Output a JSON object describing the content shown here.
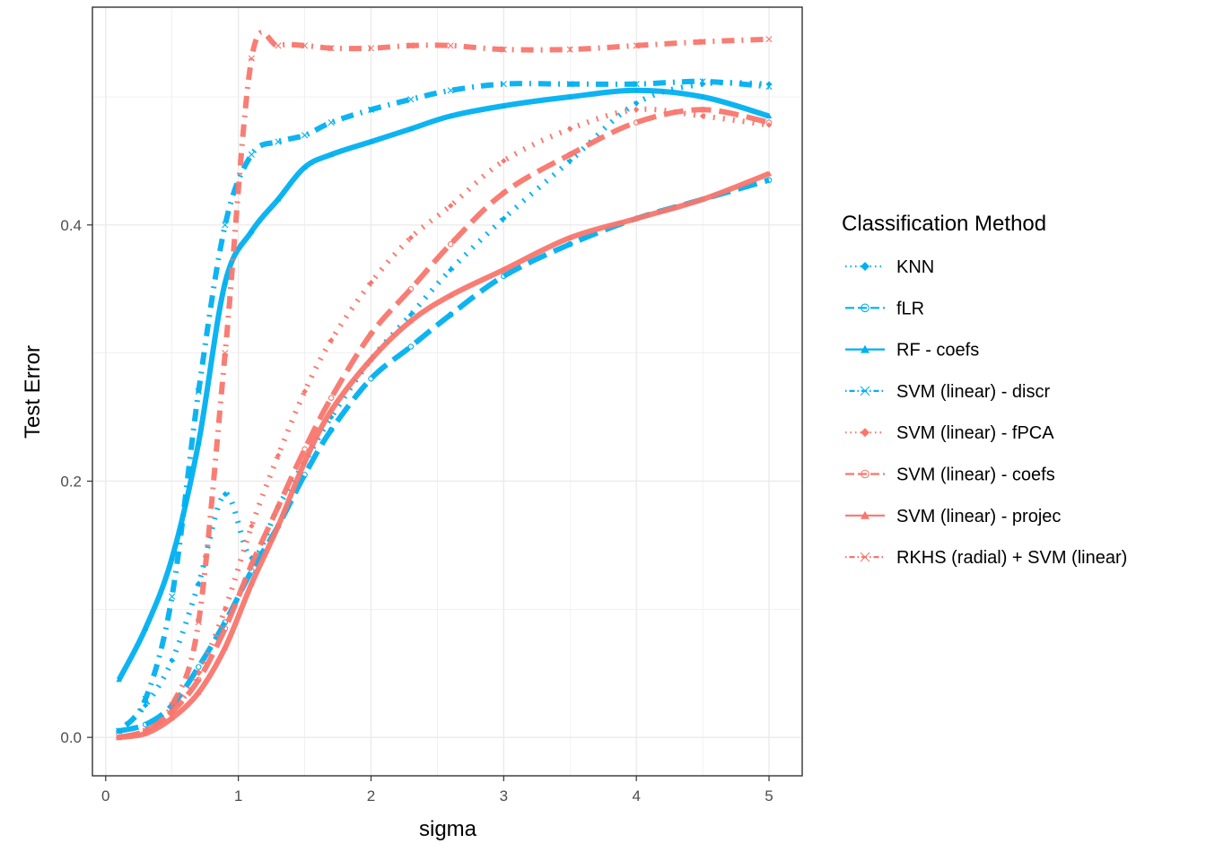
{
  "chart_data": {
    "type": "line",
    "xlabel": "sigma",
    "ylabel": "Test Error",
    "xlim": [
      -0.1,
      5.25
    ],
    "ylim": [
      -0.03,
      0.57
    ],
    "x_ticks": [
      0,
      1,
      2,
      3,
      4,
      5
    ],
    "x_tick_labels": [
      "0",
      "1",
      "2",
      "3",
      "4",
      "5"
    ],
    "y_ticks": [
      0.0,
      0.2,
      0.4
    ],
    "y_tick_labels": [
      "0.0",
      "0.2",
      "0.4"
    ],
    "grid": true,
    "legend": {
      "title": "Classification Method",
      "position": "right"
    },
    "colors": {
      "blue": "#00B0F0",
      "red": "#F8766D",
      "panel_border": "#333333",
      "grid": "#ebebeb"
    },
    "x": [
      0.1,
      0.3,
      0.5,
      0.7,
      0.9,
      1.1,
      1.3,
      1.5,
      1.7,
      2.0,
      2.3,
      2.6,
      3.0,
      3.5,
      4.0,
      4.5,
      5.0
    ],
    "series": [
      {
        "name": "KNN",
        "color": "#00B0F0",
        "dash": "dot",
        "marker": "diamond",
        "values": [
          0.005,
          0.025,
          0.06,
          0.12,
          0.19,
          0.14,
          0.18,
          0.215,
          0.25,
          0.295,
          0.33,
          0.365,
          0.405,
          0.45,
          0.495,
          0.51,
          0.51
        ]
      },
      {
        "name": "fLR",
        "color": "#00B0F0",
        "dash": "longdash",
        "marker": "circle-open",
        "values": [
          0.005,
          0.01,
          0.025,
          0.055,
          0.09,
          0.13,
          0.165,
          0.205,
          0.24,
          0.28,
          0.305,
          0.33,
          0.36,
          0.385,
          0.405,
          0.42,
          0.435
        ]
      },
      {
        "name": "RF - coefs",
        "color": "#00B0F0",
        "dash": "solid",
        "marker": "triangle",
        "values": [
          0.045,
          0.085,
          0.14,
          0.23,
          0.355,
          0.395,
          0.42,
          0.445,
          0.455,
          0.465,
          0.475,
          0.485,
          0.493,
          0.5,
          0.505,
          0.5,
          0.485
        ]
      },
      {
        "name": "SVM (linear) - discr",
        "color": "#00B0F0",
        "dash": "dotdash",
        "marker": "x",
        "values": [
          0.005,
          0.03,
          0.11,
          0.27,
          0.4,
          0.455,
          0.465,
          0.47,
          0.48,
          0.49,
          0.498,
          0.505,
          0.51,
          0.51,
          0.51,
          0.512,
          0.508
        ]
      },
      {
        "name": "SVM (linear) - fPCA",
        "color": "#F8766D",
        "dash": "dot",
        "marker": "diamond",
        "values": [
          0.0,
          0.005,
          0.02,
          0.05,
          0.1,
          0.165,
          0.22,
          0.27,
          0.31,
          0.355,
          0.39,
          0.415,
          0.45,
          0.475,
          0.49,
          0.485,
          0.478
        ]
      },
      {
        "name": "SVM (linear) - coefs",
        "color": "#F8766D",
        "dash": "longdash",
        "marker": "circle-open",
        "values": [
          0.0,
          0.005,
          0.02,
          0.045,
          0.085,
          0.135,
          0.18,
          0.225,
          0.265,
          0.315,
          0.35,
          0.385,
          0.425,
          0.455,
          0.48,
          0.49,
          0.48
        ]
      },
      {
        "name": "SVM (linear) - projec",
        "color": "#F8766D",
        "dash": "solid",
        "marker": "triangle",
        "values": [
          0.0,
          0.003,
          0.015,
          0.035,
          0.07,
          0.12,
          0.165,
          0.215,
          0.255,
          0.295,
          0.325,
          0.345,
          0.365,
          0.39,
          0.405,
          0.42,
          0.44
        ]
      },
      {
        "name": "RKHS (radial) + SVM (linear)",
        "color": "#F8766D",
        "dash": "dotdash",
        "marker": "x",
        "values": [
          0.0,
          0.005,
          0.025,
          0.09,
          0.3,
          0.53,
          0.54,
          0.54,
          0.538,
          0.538,
          0.54,
          0.54,
          0.537,
          0.537,
          0.54,
          0.543,
          0.545
        ]
      }
    ]
  }
}
